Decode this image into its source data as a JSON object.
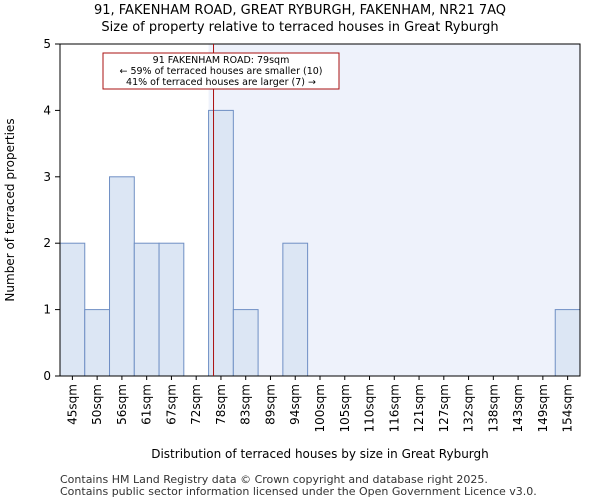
{
  "title_line1": "91, FAKENHAM ROAD, GREAT RYBURGH, FAKENHAM, NR21 7AQ",
  "title_line2": "Size of property relative to terraced houses in Great Ryburgh",
  "footer_line1": "Contains HM Land Registry data © Crown copyright and database right 2025.",
  "footer_line2": "Contains public sector information licensed under the Open Government Licence v3.0.",
  "colors": {
    "bar_fill": "#dce6f4",
    "bar_stroke": "#6f8fc4",
    "highlight_region": "#eef2fb",
    "marker_line": "#aa1111",
    "annotation_border": "#aa1111"
  },
  "chart_data": {
    "type": "bar",
    "title": "Size of property relative to terraced houses in Great Ryburgh",
    "xlabel": "Distribution of terraced houses by size in Great Ryburgh",
    "ylabel": "Number of terraced properties",
    "categories": [
      "45sqm",
      "50sqm",
      "56sqm",
      "61sqm",
      "67sqm",
      "72sqm",
      "78sqm",
      "83sqm",
      "89sqm",
      "94sqm",
      "100sqm",
      "105sqm",
      "110sqm",
      "116sqm",
      "121sqm",
      "127sqm",
      "132sqm",
      "138sqm",
      "143sqm",
      "149sqm",
      "154sqm"
    ],
    "values": [
      2,
      1,
      3,
      2,
      2,
      0,
      4,
      1,
      0,
      2,
      0,
      0,
      0,
      0,
      0,
      0,
      0,
      0,
      0,
      0,
      1
    ],
    "ylim": [
      0,
      5
    ],
    "yticks": [
      0,
      1,
      2,
      3,
      4,
      5
    ],
    "property_bin_position": 6.2,
    "highlight_from_bin": 6,
    "annotation": {
      "line1": "91 FAKENHAM ROAD: 79sqm",
      "line2": "← 59% of terraced houses are smaller (10)",
      "line3": "41% of terraced houses are larger (7) →"
    }
  }
}
